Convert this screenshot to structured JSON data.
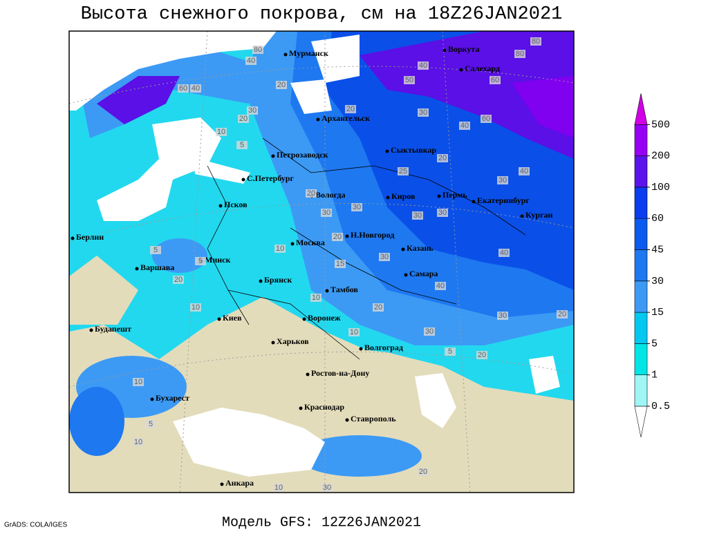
{
  "title": "Высота снежного покрова, см на 18Z26JAN2021",
  "footer": {
    "model": "Модель GFS: 12Z26JAN2021",
    "credit": "GrADS: COLA/IGES"
  },
  "cities": [
    "Мурманск",
    "Воркута",
    "Салехард",
    "Архангельск",
    "Сыктывкар",
    "Петрозаводск",
    "С.Петербург",
    "Вологда",
    "Киров",
    "Пермь",
    "Екатеринбург",
    "Курган",
    "Псков",
    "Н.Новгород",
    "Москва",
    "Казань",
    "Берлин",
    "Минск",
    "Варшава",
    "Брянск",
    "Самара",
    "Тамбов",
    "Киев",
    "Воронеж",
    "Будапешт",
    "Харьков",
    "Волгоград",
    "Ростов-на-Дону",
    "Бухарест",
    "Краснодар",
    "Ставрополь",
    "Анкара"
  ],
  "contour_labels": [
    80,
    80,
    80,
    40,
    40,
    50,
    60,
    40,
    60,
    20,
    30,
    20,
    20,
    30,
    40,
    60,
    10,
    5,
    20,
    25,
    40,
    30,
    20,
    30,
    30,
    30,
    30,
    20,
    10,
    30,
    40,
    5,
    5,
    20,
    15,
    40,
    10,
    10,
    20,
    30,
    20,
    10,
    30,
    5,
    20,
    10,
    5,
    10,
    20,
    10,
    30
  ],
  "legend": {
    "levels": [
      0.5,
      1,
      5,
      15,
      30,
      45,
      60,
      100,
      200,
      500
    ],
    "colors": [
      "#ffffff",
      "#a0f5f5",
      "#00e6e6",
      "#00c8f0",
      "#3c9af5",
      "#1e78f0",
      "#0a5af0",
      "#0a3cf0",
      "#5a14eb",
      "#9600f5",
      "#d200e6"
    ]
  }
}
